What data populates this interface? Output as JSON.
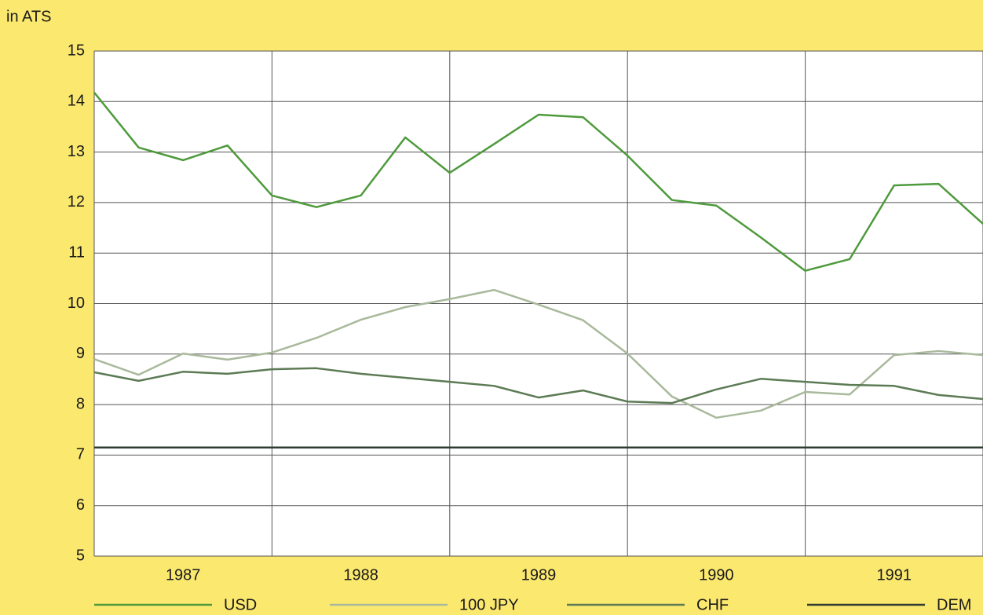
{
  "chart_data": {
    "type": "line",
    "y_axis_label": "in ATS",
    "x": [
      1987,
      1987.25,
      1987.5,
      1987.75,
      1988,
      1988.25,
      1988.5,
      1988.75,
      1989,
      1989.25,
      1989.5,
      1989.75,
      1990,
      1990.25,
      1990.5,
      1990.75,
      1991,
      1991.25,
      1991.5,
      1991.75,
      1992
    ],
    "series": [
      {
        "name": "USD",
        "color": "#4e9a3c",
        "values": [
          14.18,
          13.09,
          12.84,
          13.13,
          12.14,
          11.91,
          12.14,
          13.29,
          12.59,
          13.16,
          13.74,
          13.69,
          12.93,
          12.05,
          11.94,
          11.31,
          10.65,
          10.88,
          12.34,
          12.37,
          11.58
        ]
      },
      {
        "name": "100 JPY",
        "color": "#a9b99c",
        "values": [
          8.9,
          8.59,
          9.01,
          8.89,
          9.03,
          9.32,
          9.68,
          9.93,
          10.09,
          10.27,
          9.98,
          9.67,
          9.01,
          8.16,
          7.74,
          7.88,
          8.25,
          8.2,
          8.98,
          9.06,
          8.98
        ]
      },
      {
        "name": "CHF",
        "color": "#5c7b55",
        "values": [
          8.64,
          8.47,
          8.65,
          8.61,
          8.7,
          8.72,
          8.61,
          8.53,
          8.45,
          8.37,
          8.14,
          8.28,
          8.06,
          8.03,
          8.3,
          8.51,
          8.45,
          8.39,
          8.37,
          8.19,
          8.11
        ]
      },
      {
        "name": "DEM",
        "color": "#2f3d30",
        "values": [
          7.15,
          7.15,
          7.15,
          7.15,
          7.15,
          7.15,
          7.15,
          7.15,
          7.15,
          7.15,
          7.15,
          7.15,
          7.15,
          7.15,
          7.15,
          7.15,
          7.15,
          7.15,
          7.15,
          7.15,
          7.15
        ]
      }
    ],
    "xlim": [
      1987,
      1992
    ],
    "xticks": [
      {
        "value": 1987.5,
        "label": "1987"
      },
      {
        "value": 1988.5,
        "label": "1988"
      },
      {
        "value": 1989.5,
        "label": "1989"
      },
      {
        "value": 1990.5,
        "label": "1990"
      },
      {
        "value": 1991.5,
        "label": "1991"
      }
    ],
    "xgrid": [
      1987,
      1988,
      1989,
      1990,
      1991,
      1992
    ],
    "ylim": [
      5,
      15
    ],
    "yticks": [
      5,
      6,
      7,
      8,
      9,
      10,
      11,
      12,
      13,
      14,
      15
    ],
    "grid": true,
    "legend": "bottom"
  }
}
